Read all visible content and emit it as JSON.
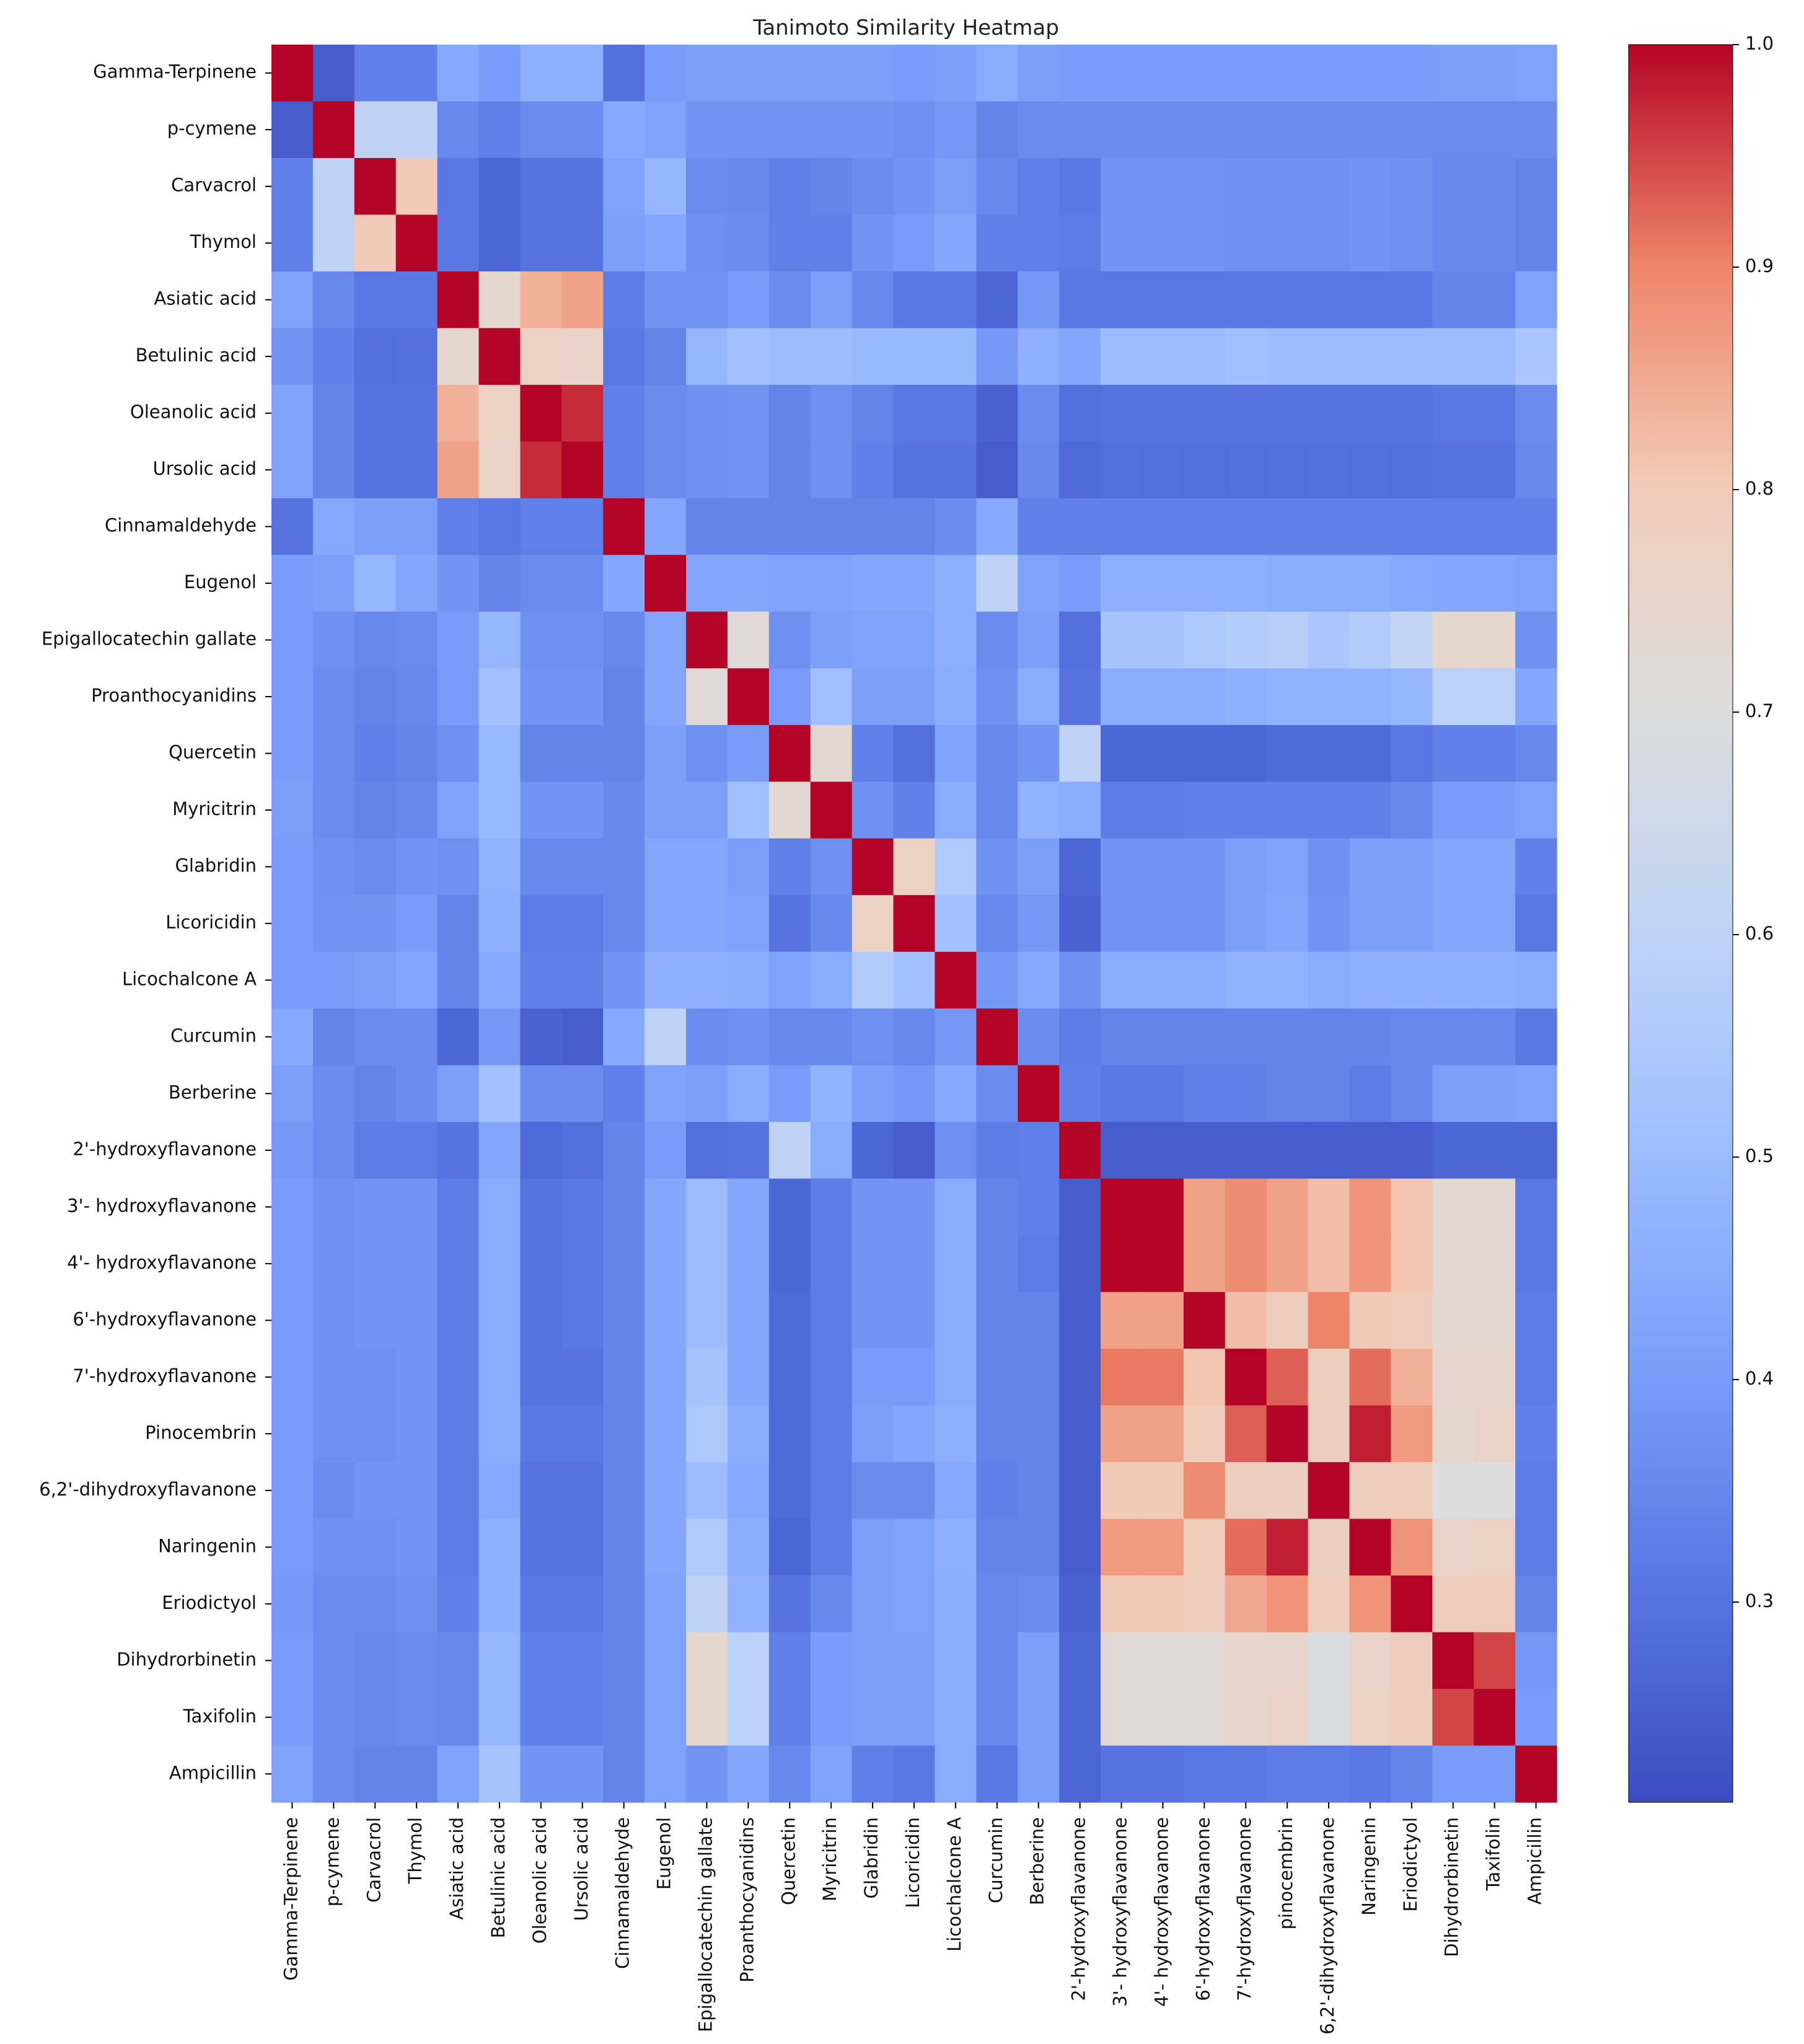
{
  "chart_data": {
    "type": "heatmap",
    "title": "Tanimoto Similarity Heatmap",
    "xlabel": "",
    "ylabel": "",
    "row_labels": [
      "Gamma-Terpinene",
      "p-cymene",
      "Carvacrol",
      "Thymol",
      "Asiatic acid",
      "Betulinic acid",
      "Oleanolic acid",
      "Ursolic acid",
      "Cinnamaldehyde",
      "Eugenol",
      "Epigallocatechin gallate",
      "Proanthocyanidins",
      "Quercetin",
      "Myricitrin",
      "Glabridin",
      "Licoricidin",
      "Licochalcone A",
      "Curcumin",
      "Berberine",
      "2'-hydroxyflavanone",
      "3'- hydroxyflavanone",
      "4'- hydroxyflavanone",
      "6'-hydroxyflavanone",
      "7'-hydroxyflavanone",
      "Pinocembrin",
      "6,2'-dihydroxyflavanone",
      "Naringenin",
      "Eriodictyol",
      "Dihydrorbinetin",
      "Taxifolin",
      "Ampicillin"
    ],
    "col_labels": [
      "Gamma-Terpinene",
      "p-cymene",
      "Carvacrol",
      "Thymol",
      "Asiatic acid",
      "Betulinic acid",
      "Oleanolic acid",
      "Ursolic acid",
      "Cinnamaldehyde",
      "Eugenol",
      "Epigallocatechin gallate",
      "Proanthocyanidins",
      "Quercetin",
      "Myricitrin",
      "Glabridin",
      "Licoricidin",
      "Licochalcone A",
      "Curcumin",
      "Berberine",
      "2'-hydroxyflavanone",
      "3'- hydroxyflavanone",
      "4'- hydroxyflavanone",
      "6'-hydroxyflavanone",
      "7'-hydroxyflavanone",
      "pinocembrin",
      "6,2'-dihydroxyflavanone",
      "Naringenin",
      "Eriodictyol",
      "Dihydrorbinetin",
      "Taxifolin",
      "Ampicillin"
    ],
    "values": [
      [
        1.0,
        0.25,
        0.33,
        0.33,
        0.44,
        0.4,
        0.46,
        0.46,
        0.29,
        0.4,
        0.41,
        0.41,
        0.41,
        0.41,
        0.41,
        0.4,
        0.41,
        0.45,
        0.41,
        0.4,
        0.4,
        0.4,
        0.4,
        0.4,
        0.4,
        0.4,
        0.4,
        0.4,
        0.41,
        0.41,
        0.42
      ],
      [
        0.25,
        1.0,
        0.6,
        0.6,
        0.35,
        0.33,
        0.36,
        0.36,
        0.44,
        0.42,
        0.38,
        0.38,
        0.38,
        0.38,
        0.38,
        0.37,
        0.39,
        0.34,
        0.36,
        0.36,
        0.36,
        0.36,
        0.36,
        0.36,
        0.36,
        0.36,
        0.36,
        0.36,
        0.36,
        0.36,
        0.36
      ],
      [
        0.33,
        0.6,
        1.0,
        0.8,
        0.31,
        0.27,
        0.3,
        0.3,
        0.42,
        0.48,
        0.36,
        0.35,
        0.33,
        0.34,
        0.36,
        0.38,
        0.41,
        0.35,
        0.33,
        0.31,
        0.38,
        0.38,
        0.38,
        0.37,
        0.37,
        0.37,
        0.38,
        0.37,
        0.35,
        0.35,
        0.34
      ],
      [
        0.33,
        0.6,
        0.8,
        1.0,
        0.31,
        0.27,
        0.3,
        0.3,
        0.41,
        0.43,
        0.37,
        0.36,
        0.33,
        0.33,
        0.38,
        0.4,
        0.43,
        0.33,
        0.33,
        0.32,
        0.38,
        0.38,
        0.38,
        0.37,
        0.37,
        0.37,
        0.38,
        0.37,
        0.35,
        0.35,
        0.34
      ],
      [
        0.42,
        0.35,
        0.31,
        0.31,
        1.0,
        0.74,
        0.84,
        0.86,
        0.32,
        0.38,
        0.38,
        0.4,
        0.36,
        0.41,
        0.35,
        0.31,
        0.31,
        0.27,
        0.39,
        0.31,
        0.31,
        0.31,
        0.31,
        0.31,
        0.31,
        0.31,
        0.31,
        0.31,
        0.34,
        0.34,
        0.42
      ],
      [
        0.38,
        0.33,
        0.29,
        0.29,
        0.74,
        1.0,
        0.77,
        0.76,
        0.31,
        0.34,
        0.48,
        0.52,
        0.5,
        0.5,
        0.49,
        0.49,
        0.49,
        0.39,
        0.46,
        0.43,
        0.5,
        0.5,
        0.5,
        0.51,
        0.5,
        0.5,
        0.5,
        0.5,
        0.5,
        0.5,
        0.54
      ],
      [
        0.42,
        0.34,
        0.3,
        0.3,
        0.84,
        0.77,
        1.0,
        0.97,
        0.33,
        0.36,
        0.37,
        0.38,
        0.34,
        0.37,
        0.34,
        0.31,
        0.31,
        0.26,
        0.36,
        0.29,
        0.3,
        0.3,
        0.3,
        0.3,
        0.3,
        0.3,
        0.3,
        0.3,
        0.31,
        0.31,
        0.36
      ],
      [
        0.42,
        0.34,
        0.3,
        0.3,
        0.86,
        0.76,
        0.97,
        1.0,
        0.33,
        0.36,
        0.37,
        0.38,
        0.34,
        0.37,
        0.33,
        0.3,
        0.3,
        0.25,
        0.35,
        0.28,
        0.29,
        0.29,
        0.29,
        0.29,
        0.29,
        0.29,
        0.29,
        0.29,
        0.3,
        0.3,
        0.35
      ],
      [
        0.3,
        0.44,
        0.41,
        0.41,
        0.33,
        0.31,
        0.33,
        0.33,
        1.0,
        0.43,
        0.34,
        0.34,
        0.34,
        0.34,
        0.34,
        0.34,
        0.36,
        0.44,
        0.33,
        0.33,
        0.33,
        0.33,
        0.33,
        0.33,
        0.33,
        0.33,
        0.33,
        0.33,
        0.33,
        0.33,
        0.33
      ],
      [
        0.4,
        0.41,
        0.48,
        0.43,
        0.38,
        0.34,
        0.36,
        0.36,
        0.43,
        1.0,
        0.43,
        0.43,
        0.42,
        0.42,
        0.43,
        0.43,
        0.46,
        0.6,
        0.42,
        0.4,
        0.46,
        0.46,
        0.46,
        0.46,
        0.45,
        0.45,
        0.45,
        0.44,
        0.43,
        0.43,
        0.42
      ],
      [
        0.4,
        0.37,
        0.35,
        0.36,
        0.4,
        0.48,
        0.37,
        0.37,
        0.35,
        0.43,
        1.0,
        0.72,
        0.37,
        0.41,
        0.42,
        0.42,
        0.46,
        0.36,
        0.41,
        0.29,
        0.53,
        0.53,
        0.55,
        0.57,
        0.58,
        0.54,
        0.57,
        0.62,
        0.74,
        0.74,
        0.37
      ],
      [
        0.4,
        0.36,
        0.34,
        0.35,
        0.4,
        0.52,
        0.38,
        0.38,
        0.34,
        0.43,
        0.72,
        1.0,
        0.4,
        0.51,
        0.41,
        0.41,
        0.45,
        0.37,
        0.45,
        0.3,
        0.45,
        0.45,
        0.45,
        0.46,
        0.47,
        0.47,
        0.47,
        0.48,
        0.59,
        0.59,
        0.43
      ],
      [
        0.4,
        0.36,
        0.33,
        0.34,
        0.37,
        0.49,
        0.34,
        0.34,
        0.34,
        0.41,
        0.37,
        0.4,
        1.0,
        0.73,
        0.33,
        0.29,
        0.42,
        0.35,
        0.38,
        0.6,
        0.27,
        0.27,
        0.27,
        0.27,
        0.28,
        0.28,
        0.28,
        0.31,
        0.33,
        0.33,
        0.35
      ],
      [
        0.41,
        0.36,
        0.34,
        0.35,
        0.42,
        0.49,
        0.38,
        0.38,
        0.35,
        0.41,
        0.41,
        0.51,
        0.73,
        1.0,
        0.37,
        0.33,
        0.45,
        0.35,
        0.47,
        0.45,
        0.32,
        0.32,
        0.33,
        0.33,
        0.33,
        0.33,
        0.33,
        0.35,
        0.4,
        0.4,
        0.42
      ],
      [
        0.4,
        0.37,
        0.36,
        0.38,
        0.37,
        0.47,
        0.35,
        0.35,
        0.35,
        0.43,
        0.43,
        0.41,
        0.33,
        0.37,
        1.0,
        0.77,
        0.56,
        0.37,
        0.41,
        0.27,
        0.38,
        0.38,
        0.38,
        0.41,
        0.42,
        0.37,
        0.41,
        0.41,
        0.43,
        0.43,
        0.33
      ],
      [
        0.4,
        0.38,
        0.38,
        0.4,
        0.34,
        0.46,
        0.32,
        0.32,
        0.35,
        0.43,
        0.43,
        0.42,
        0.3,
        0.35,
        0.77,
        1.0,
        0.52,
        0.35,
        0.39,
        0.26,
        0.38,
        0.38,
        0.38,
        0.41,
        0.43,
        0.38,
        0.41,
        0.41,
        0.43,
        0.43,
        0.31
      ],
      [
        0.4,
        0.4,
        0.41,
        0.43,
        0.34,
        0.44,
        0.33,
        0.33,
        0.38,
        0.46,
        0.46,
        0.45,
        0.42,
        0.45,
        0.56,
        0.52,
        1.0,
        0.39,
        0.44,
        0.37,
        0.45,
        0.45,
        0.45,
        0.47,
        0.47,
        0.45,
        0.46,
        0.46,
        0.46,
        0.46,
        0.45
      ],
      [
        0.44,
        0.34,
        0.36,
        0.36,
        0.27,
        0.39,
        0.26,
        0.25,
        0.44,
        0.6,
        0.36,
        0.37,
        0.35,
        0.35,
        0.37,
        0.35,
        0.39,
        1.0,
        0.36,
        0.32,
        0.34,
        0.34,
        0.34,
        0.34,
        0.34,
        0.34,
        0.34,
        0.35,
        0.35,
        0.35,
        0.31
      ],
      [
        0.41,
        0.36,
        0.34,
        0.36,
        0.41,
        0.52,
        0.36,
        0.36,
        0.33,
        0.42,
        0.41,
        0.45,
        0.4,
        0.47,
        0.41,
        0.39,
        0.44,
        0.36,
        1.0,
        0.33,
        0.31,
        0.31,
        0.33,
        0.33,
        0.34,
        0.34,
        0.32,
        0.35,
        0.41,
        0.41,
        0.42
      ],
      [
        0.39,
        0.36,
        0.32,
        0.32,
        0.3,
        0.43,
        0.28,
        0.29,
        0.34,
        0.4,
        0.29,
        0.3,
        0.6,
        0.45,
        0.27,
        0.25,
        0.37,
        0.32,
        0.33,
        1.0,
        0.25,
        0.25,
        0.25,
        0.25,
        0.25,
        0.25,
        0.25,
        0.25,
        0.27,
        0.27,
        0.27
      ],
      [
        0.4,
        0.37,
        0.38,
        0.38,
        0.32,
        0.45,
        0.3,
        0.31,
        0.34,
        0.43,
        0.5,
        0.43,
        0.27,
        0.32,
        0.38,
        0.38,
        0.45,
        0.34,
        0.33,
        0.25,
        1.0,
        1.0,
        0.86,
        0.89,
        0.86,
        0.82,
        0.88,
        0.81,
        0.73,
        0.73,
        0.31
      ],
      [
        0.4,
        0.37,
        0.38,
        0.38,
        0.32,
        0.45,
        0.3,
        0.31,
        0.34,
        0.43,
        0.5,
        0.43,
        0.27,
        0.32,
        0.38,
        0.38,
        0.45,
        0.34,
        0.32,
        0.25,
        1.0,
        1.0,
        0.86,
        0.89,
        0.86,
        0.82,
        0.88,
        0.81,
        0.73,
        0.73,
        0.31
      ],
      [
        0.4,
        0.37,
        0.38,
        0.38,
        0.32,
        0.45,
        0.3,
        0.31,
        0.34,
        0.43,
        0.5,
        0.43,
        0.28,
        0.32,
        0.38,
        0.38,
        0.45,
        0.34,
        0.34,
        0.25,
        0.86,
        0.86,
        1.0,
        0.82,
        0.79,
        0.9,
        0.8,
        0.79,
        0.73,
        0.73,
        0.32
      ],
      [
        0.4,
        0.37,
        0.37,
        0.38,
        0.32,
        0.45,
        0.3,
        0.3,
        0.34,
        0.43,
        0.53,
        0.43,
        0.28,
        0.32,
        0.4,
        0.4,
        0.45,
        0.34,
        0.34,
        0.25,
        0.91,
        0.91,
        0.81,
        1.0,
        0.93,
        0.78,
        0.92,
        0.84,
        0.75,
        0.75,
        0.32
      ],
      [
        0.4,
        0.37,
        0.37,
        0.38,
        0.32,
        0.45,
        0.31,
        0.31,
        0.34,
        0.43,
        0.55,
        0.45,
        0.28,
        0.32,
        0.41,
        0.43,
        0.46,
        0.34,
        0.34,
        0.25,
        0.86,
        0.86,
        0.79,
        0.93,
        1.0,
        0.78,
        0.98,
        0.87,
        0.74,
        0.76,
        0.33
      ],
      [
        0.4,
        0.36,
        0.38,
        0.38,
        0.32,
        0.44,
        0.3,
        0.3,
        0.34,
        0.43,
        0.5,
        0.44,
        0.28,
        0.32,
        0.36,
        0.36,
        0.44,
        0.33,
        0.34,
        0.25,
        0.8,
        0.8,
        0.89,
        0.78,
        0.78,
        1.0,
        0.79,
        0.79,
        0.7,
        0.7,
        0.32
      ],
      [
        0.4,
        0.37,
        0.37,
        0.38,
        0.32,
        0.46,
        0.3,
        0.3,
        0.34,
        0.43,
        0.56,
        0.45,
        0.27,
        0.32,
        0.41,
        0.42,
        0.46,
        0.34,
        0.34,
        0.25,
        0.87,
        0.87,
        0.79,
        0.92,
        0.98,
        0.78,
        1.0,
        0.88,
        0.76,
        0.77,
        0.32
      ],
      [
        0.39,
        0.36,
        0.36,
        0.37,
        0.33,
        0.46,
        0.31,
        0.31,
        0.34,
        0.42,
        0.6,
        0.47,
        0.3,
        0.35,
        0.41,
        0.42,
        0.45,
        0.35,
        0.36,
        0.26,
        0.8,
        0.8,
        0.79,
        0.85,
        0.88,
        0.79,
        0.88,
        1.0,
        0.79,
        0.79,
        0.34
      ],
      [
        0.4,
        0.36,
        0.35,
        0.36,
        0.35,
        0.48,
        0.33,
        0.33,
        0.34,
        0.42,
        0.74,
        0.59,
        0.33,
        0.4,
        0.41,
        0.41,
        0.45,
        0.35,
        0.41,
        0.27,
        0.72,
        0.72,
        0.72,
        0.75,
        0.75,
        0.69,
        0.76,
        0.79,
        1.0,
        0.95,
        0.39
      ],
      [
        0.4,
        0.36,
        0.35,
        0.36,
        0.35,
        0.48,
        0.33,
        0.33,
        0.34,
        0.42,
        0.74,
        0.59,
        0.33,
        0.4,
        0.41,
        0.41,
        0.45,
        0.35,
        0.41,
        0.27,
        0.72,
        0.72,
        0.72,
        0.75,
        0.76,
        0.69,
        0.77,
        0.79,
        0.95,
        1.0,
        0.4
      ],
      [
        0.42,
        0.36,
        0.34,
        0.34,
        0.42,
        0.53,
        0.38,
        0.38,
        0.34,
        0.42,
        0.38,
        0.43,
        0.35,
        0.42,
        0.33,
        0.31,
        0.45,
        0.31,
        0.41,
        0.27,
        0.3,
        0.3,
        0.31,
        0.31,
        0.32,
        0.32,
        0.31,
        0.34,
        0.4,
        0.4,
        1.0
      ]
    ],
    "zlim": [
      0.21,
      1.0
    ],
    "colormap": "coolwarm",
    "colorbar_ticks": [
      "0.3",
      "0.4",
      "0.5",
      "0.6",
      "0.7",
      "0.8",
      "0.9",
      "1.0"
    ],
    "colorbar_tick_values": [
      0.3,
      0.4,
      0.5,
      0.6,
      0.7,
      0.8,
      0.9,
      1.0
    ]
  }
}
